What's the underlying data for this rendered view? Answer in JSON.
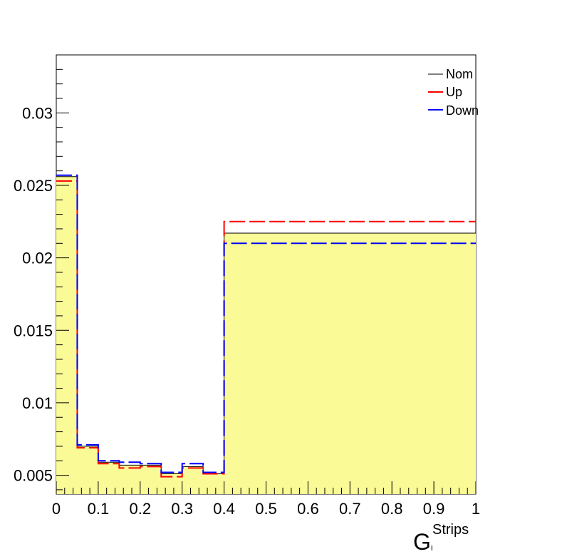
{
  "chart_data": {
    "type": "line",
    "subtype": "step-histogram",
    "title": "",
    "xlabel": "G",
    "xlabel_superscript": "Strips",
    "xlabel_subscript": "i",
    "ylabel": "",
    "xlim": [
      0,
      1
    ],
    "ylim": [
      0.0037,
      0.034
    ],
    "x_ticks": [
      "0",
      "0.1",
      "0.2",
      "0.3",
      "0.4",
      "0.5",
      "0.6",
      "0.7",
      "0.8",
      "0.9",
      "1"
    ],
    "y_ticks": [
      "0.005",
      "0.01",
      "0.015",
      "0.02",
      "0.025",
      "0.03"
    ],
    "bin_edges": [
      0,
      0.05,
      0.1,
      0.15,
      0.2,
      0.25,
      0.3,
      0.35,
      0.4,
      1.0
    ],
    "series": [
      {
        "name": "Nom",
        "color": "#000000",
        "fill": "#fafa96",
        "style": "solid",
        "values": [
          0.0256,
          0.007,
          0.0059,
          0.0057,
          0.0057,
          0.0051,
          0.0056,
          0.0051,
          0.0217
        ]
      },
      {
        "name": "Up",
        "color": "#ff0000",
        "style": "dashed",
        "values": [
          0.0253,
          0.0069,
          0.0058,
          0.0055,
          0.0056,
          0.0049,
          0.0055,
          0.0051,
          0.0225
        ]
      },
      {
        "name": "Down",
        "color": "#0000ff",
        "style": "dashed",
        "values": [
          0.0257,
          0.0071,
          0.006,
          0.0059,
          0.0058,
          0.0052,
          0.0058,
          0.0052,
          0.021
        ]
      }
    ],
    "legend": {
      "position": "top-right",
      "entries": [
        "Nom",
        "Up",
        "Down"
      ]
    },
    "grid": false
  }
}
